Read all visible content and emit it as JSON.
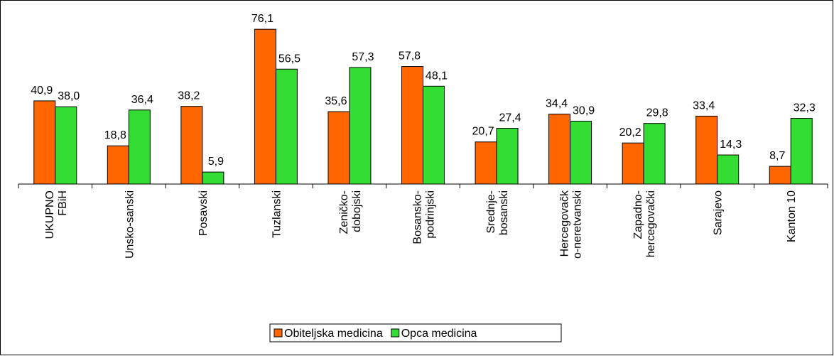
{
  "chart_data": {
    "type": "bar",
    "categories": [
      [
        "UKUPNO",
        "FBiH"
      ],
      [
        "Unsko-sanski"
      ],
      [
        "Posavski"
      ],
      [
        "Tuzlanski"
      ],
      [
        "Zeničko-",
        "dobojski"
      ],
      [
        "Bosansko-",
        "podrinjski"
      ],
      [
        "Srednje-",
        "bosanski"
      ],
      [
        "Hercegovačk",
        "o-neretvanski"
      ],
      [
        "Zapadno-",
        "hercegovački"
      ],
      [
        "Sarajevo"
      ],
      [
        "Kanton 10"
      ]
    ],
    "series": [
      {
        "name": "Obiteljska medicina",
        "color": "#ff6600",
        "values": [
          40.9,
          18.8,
          38.2,
          76.1,
          35.6,
          57.8,
          20.7,
          34.4,
          20.2,
          33.4,
          8.7
        ],
        "value_labels": [
          "40,9",
          "18,8",
          "38,2",
          "76,1",
          "35,6",
          "57,8",
          "20,7",
          "34,4",
          "20,2",
          "33,4",
          "8,7"
        ]
      },
      {
        "name": "Opca medicina",
        "color": "#33dd33",
        "values": [
          38.0,
          36.4,
          5.9,
          56.5,
          57.3,
          48.1,
          27.4,
          30.9,
          29.8,
          14.3,
          32.3
        ],
        "value_labels": [
          "38,0",
          "36,4",
          "5,9",
          "56,5",
          "57,3",
          "48,1",
          "27,4",
          "30,9",
          "29,8",
          "14,3",
          "32,3"
        ]
      }
    ],
    "ylim": [
      0,
      80
    ],
    "legend": "bottom"
  }
}
